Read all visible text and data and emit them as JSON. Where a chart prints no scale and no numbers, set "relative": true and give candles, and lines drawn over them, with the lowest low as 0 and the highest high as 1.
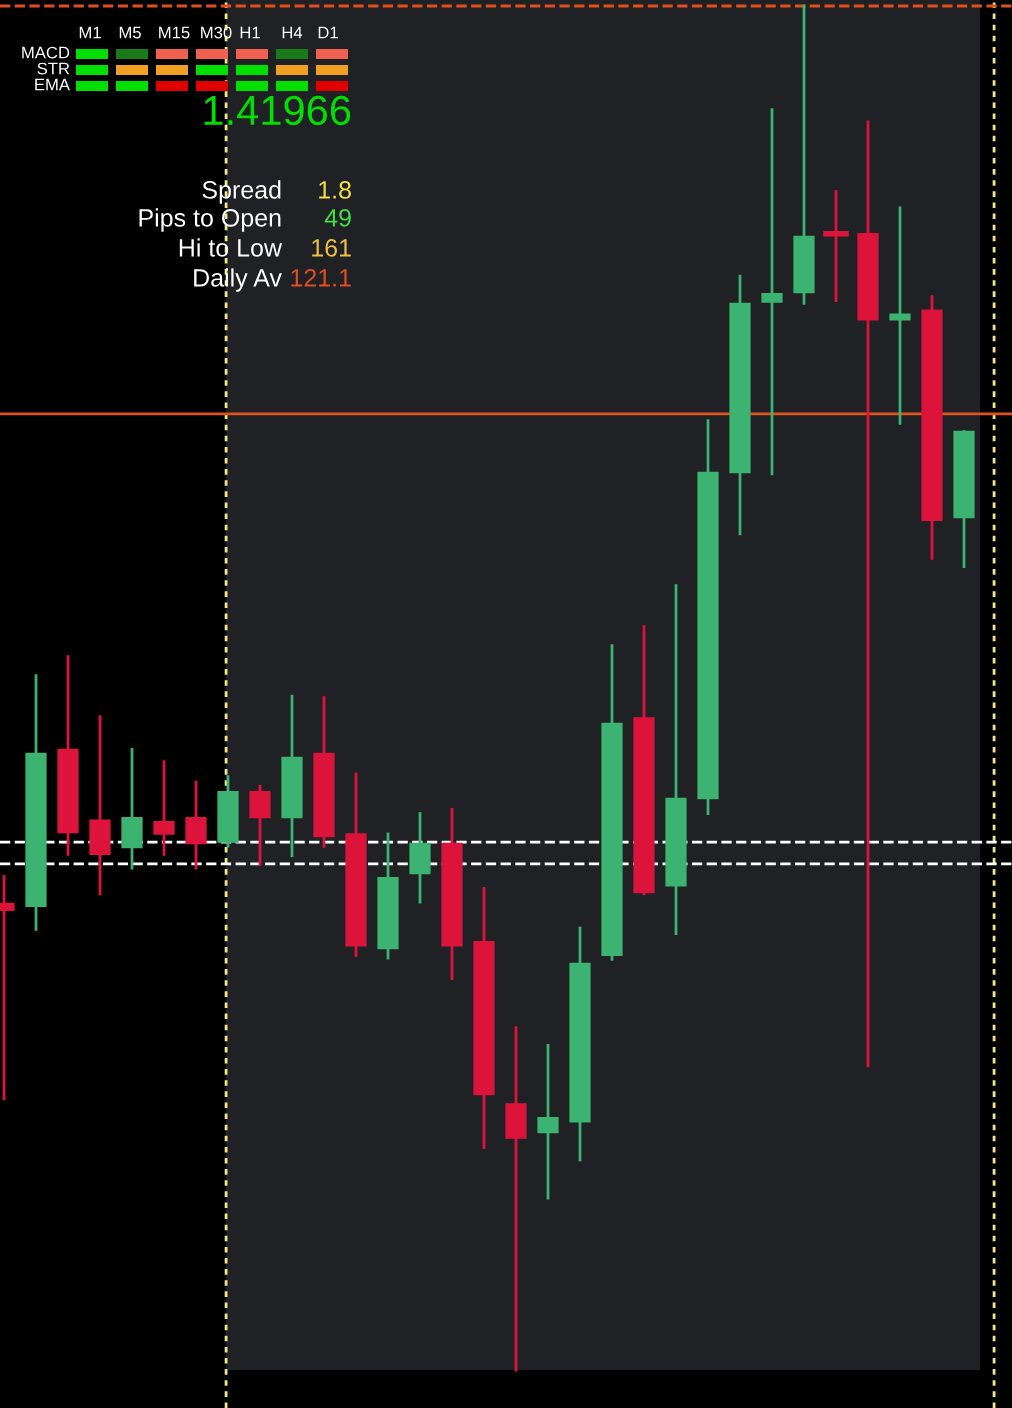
{
  "chart_data": {
    "type": "candlestick",
    "relative": true,
    "tick_labels": false,
    "categories": [
      null,
      null,
      null,
      null,
      null,
      null,
      null,
      null,
      null,
      null,
      null,
      null,
      null,
      null,
      null,
      null,
      null,
      null,
      null,
      null,
      null,
      null,
      null,
      null,
      null,
      null,
      null,
      null,
      null,
      null,
      null
    ],
    "ohlc": [
      [
        0.342,
        0.362,
        0.199,
        0.337
      ],
      [
        0.34,
        0.509,
        0.323,
        0.452
      ],
      [
        0.455,
        0.523,
        0.378,
        0.394
      ],
      [
        0.403,
        0.479,
        0.349,
        0.378
      ],
      [
        0.383,
        0.455,
        0.368,
        0.405
      ],
      [
        0.402,
        0.446,
        0.378,
        0.393
      ],
      [
        0.405,
        0.431,
        0.368,
        0.386
      ],
      [
        0.387,
        0.435,
        0.384,
        0.424
      ],
      [
        0.424,
        0.428,
        0.371,
        0.405
      ],
      [
        0.405,
        0.494,
        0.377,
        0.449
      ],
      [
        0.452,
        0.493,
        0.384,
        0.391
      ],
      [
        0.393,
        0.437,
        0.304,
        0.311
      ],
      [
        0.309,
        0.393,
        0.302,
        0.361
      ],
      [
        0.364,
        0.408,
        0.343,
        0.386
      ],
      [
        0.386,
        0.411,
        0.287,
        0.311
      ],
      [
        0.314,
        0.353,
        0.163,
        0.202
      ],
      [
        0.195,
        0.251,
        0.0,
        0.17
      ],
      [
        0.174,
        0.238,
        0.126,
        0.185
      ],
      [
        0.182,
        0.324,
        0.154,
        0.298
      ],
      [
        0.304,
        0.531,
        0.301,
        0.474
      ],
      [
        0.478,
        0.545,
        0.349,
        0.35
      ],
      [
        0.355,
        0.575,
        0.32,
        0.419
      ],
      [
        0.419,
        0.696,
        0.408,
        0.658
      ],
      [
        0.658,
        0.802,
        0.613,
        0.782
      ],
      [
        0.783,
        0.924,
        0.657,
        0.789
      ],
      [
        0.79,
        1.0,
        0.782,
        0.831
      ],
      [
        0.833,
        0.864,
        0.784,
        0.833
      ],
      [
        0.833,
        0.915,
        0.223,
        0.77
      ],
      [
        0.77,
        0.852,
        0.694,
        0.774
      ],
      [
        0.777,
        0.787,
        0.595,
        0.623
      ],
      [
        0.625,
        0.688,
        0.589,
        0.688
      ]
    ],
    "colors": [
      "#dc143c",
      "#3cb371",
      "#dc143c",
      "#dc143c",
      "#3cb371",
      "#dc143c",
      "#dc143c",
      "#3cb371",
      "#dc143c",
      "#3cb371",
      "#dc143c",
      "#dc143c",
      "#3cb371",
      "#3cb371",
      "#dc143c",
      "#dc143c",
      "#dc143c",
      "#3cb371",
      "#3cb371",
      "#3cb371",
      "#dc143c",
      "#3cb371",
      "#3cb371",
      "#3cb371",
      "#3cb371",
      "#3cb371",
      "#dc143c",
      "#dc143c",
      "#3cb371",
      "#dc143c",
      "#3cb371"
    ],
    "ref_lines": [
      {
        "axis": "y",
        "value": 0.701,
        "color": "#e0501e",
        "line_style": "solid"
      },
      {
        "axis": "y",
        "value": 1.0,
        "color": "#e0501e",
        "line_style": "dashed"
      },
      {
        "axis": "y",
        "value": 0.387,
        "color": "#ffffff",
        "line_style": "dashed"
      },
      {
        "axis": "y",
        "value": 0.371,
        "color": "#ffffff",
        "line_style": "dashed"
      }
    ],
    "annotations": [
      "M1",
      "M5",
      "M15",
      "M30",
      "H1",
      "H4",
      "D1",
      "MACD",
      "STR",
      "EMA",
      "1.41966",
      "Spread",
      "1.8",
      "Pips to Open",
      "49",
      "Hi to Low",
      "161",
      "Daily Av",
      "121.1"
    ]
  }
}
